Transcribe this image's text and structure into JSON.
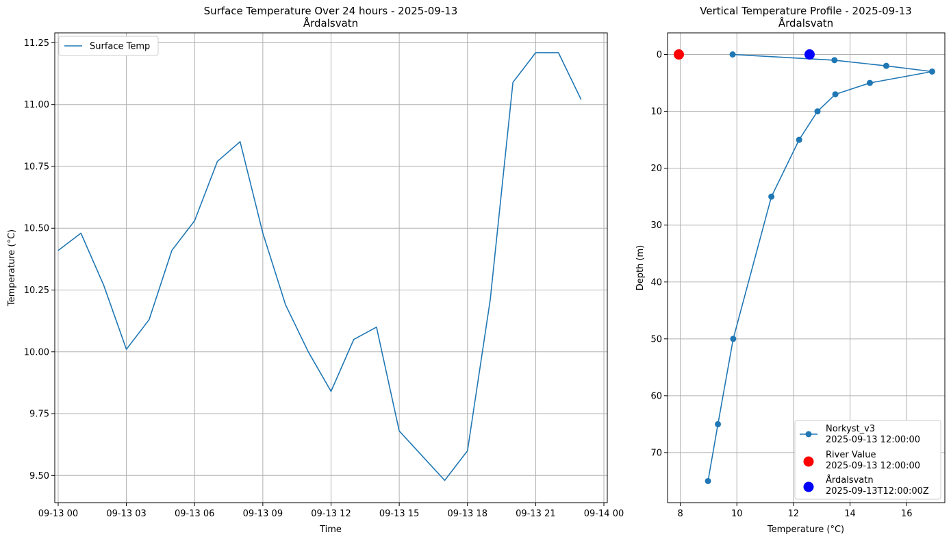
{
  "chart_data": [
    {
      "type": "line",
      "title": "Surface Temperature Over 24 hours - 2025-09-13",
      "subtitle": "Årdalsvatn",
      "xlabel": "Time",
      "ylabel": "Temperature (°C)",
      "grid": true,
      "legend": "top-left",
      "xlim": [
        -0.15,
        24.15
      ],
      "ylim": [
        9.39,
        11.29
      ],
      "x_ticks": [
        {
          "value": 0,
          "label": "09-13 00"
        },
        {
          "value": 3,
          "label": "09-13 03"
        },
        {
          "value": 6,
          "label": "09-13 06"
        },
        {
          "value": 9,
          "label": "09-13 09"
        },
        {
          "value": 12,
          "label": "09-13 12"
        },
        {
          "value": 15,
          "label": "09-13 15"
        },
        {
          "value": 18,
          "label": "09-13 18"
        },
        {
          "value": 21,
          "label": "09-13 21"
        },
        {
          "value": 24,
          "label": "09-14 00"
        }
      ],
      "y_ticks": [
        {
          "value": 9.5,
          "label": "9.50"
        },
        {
          "value": 9.75,
          "label": "9.75"
        },
        {
          "value": 10.0,
          "label": "10.00"
        },
        {
          "value": 10.25,
          "label": "10.25"
        },
        {
          "value": 10.5,
          "label": "10.50"
        },
        {
          "value": 10.75,
          "label": "10.75"
        },
        {
          "value": 11.0,
          "label": "11.00"
        },
        {
          "value": 11.25,
          "label": "11.25"
        }
      ],
      "series": [
        {
          "name": "Surface Temp",
          "color": "#1f77b4",
          "x": [
            0,
            1,
            2,
            3,
            4,
            5,
            6,
            7,
            8,
            9,
            10,
            11,
            12,
            13,
            14,
            15,
            16,
            17,
            18,
            19,
            20,
            21,
            22,
            23
          ],
          "y": [
            10.41,
            10.48,
            10.27,
            10.01,
            10.13,
            10.41,
            10.53,
            10.77,
            10.85,
            10.48,
            10.19,
            10.0,
            9.84,
            10.05,
            10.1,
            9.68,
            9.58,
            9.48,
            9.6,
            10.21,
            11.09,
            11.21,
            11.21,
            11.02
          ]
        }
      ]
    },
    {
      "type": "line",
      "title": "Vertical Temperature Profile - 2025-09-13",
      "subtitle": "Årdalsvatn",
      "xlabel": "Temperature (°C)",
      "ylabel": "Depth (m)",
      "grid": true,
      "legend": "bottom-right",
      "y_inverted": true,
      "xlim": [
        7.55,
        17.35
      ],
      "ylim": [
        -3.8,
        78.8
      ],
      "x_ticks": [
        {
          "value": 8,
          "label": "8"
        },
        {
          "value": 10,
          "label": "10"
        },
        {
          "value": 12,
          "label": "12"
        },
        {
          "value": 14,
          "label": "14"
        },
        {
          "value": 16,
          "label": "16"
        }
      ],
      "y_ticks": [
        {
          "value": 0,
          "label": "0"
        },
        {
          "value": 10,
          "label": "10"
        },
        {
          "value": 20,
          "label": "20"
        },
        {
          "value": 30,
          "label": "30"
        },
        {
          "value": 40,
          "label": "40"
        },
        {
          "value": 50,
          "label": "50"
        },
        {
          "value": 60,
          "label": "60"
        },
        {
          "value": 70,
          "label": "70"
        }
      ],
      "series": [
        {
          "name": "Norkyst_v3",
          "name_line2": "2025-09-13 12:00:00",
          "color": "#1f77b4",
          "marker": "circle-line",
          "x": [
            9.85,
            13.45,
            15.28,
            16.9,
            14.7,
            13.48,
            12.85,
            12.2,
            11.22,
            9.87,
            9.33,
            8.98
          ],
          "y": [
            0,
            1,
            2,
            3,
            5,
            7,
            10,
            15,
            25,
            50,
            65,
            75
          ]
        },
        {
          "name": "River Value",
          "name_line2": "2025-09-13 12:00:00",
          "color": "#ff0000",
          "marker": "big-circle",
          "x": [
            7.95
          ],
          "y": [
            0
          ]
        },
        {
          "name": "Årdalsvatn",
          "name_line2": "2025-09-13T12:00:00Z",
          "color": "#0000ff",
          "marker": "big-circle",
          "x": [
            12.57
          ],
          "y": [
            0
          ]
        }
      ]
    }
  ]
}
